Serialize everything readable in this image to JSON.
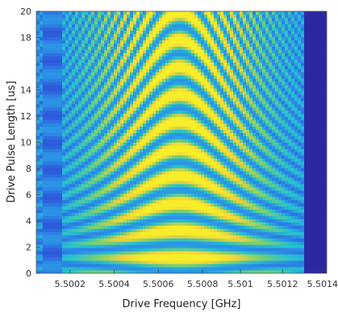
{
  "chart_data": {
    "type": "heatmap",
    "title": "",
    "xlabel": "Drive Frequency [GHz]",
    "ylabel": "Drive Pulse Length [us]",
    "xlim": [
      5.50005,
      5.50143
    ],
    "ylim": [
      0,
      20
    ],
    "x_ticks": [
      {
        "value": 5.50021,
        "label": "5.5002"
      },
      {
        "value": 5.50042,
        "label": "5.5004"
      },
      {
        "value": 5.50063,
        "label": "5.5006"
      },
      {
        "value": 5.50084,
        "label": "5.5008"
      },
      {
        "value": 5.50102,
        "label": "5.501"
      },
      {
        "value": 5.50122,
        "label": "5.5012"
      },
      {
        "value": 5.50141,
        "label": "5.5014"
      }
    ],
    "y_ticks": [
      {
        "value": 0,
        "label": "0"
      },
      {
        "value": 2,
        "label": "2"
      },
      {
        "value": 4,
        "label": "4"
      },
      {
        "value": 6,
        "label": "6"
      },
      {
        "value": 8,
        "label": "8"
      },
      {
        "value": 10,
        "label": "10"
      },
      {
        "value": 12,
        "label": "12"
      },
      {
        "value": 14,
        "label": "14"
      },
      {
        "value": 18,
        "label": "18"
      },
      {
        "value": 20,
        "label": "20"
      }
    ],
    "resonance_frequency": 5.50073,
    "band_centers_us": [
      1.2,
      3.3,
      5.4,
      7.4,
      9.5,
      11.7,
      13.8,
      15.9,
      18.0,
      20.0
    ],
    "fringe_pattern": "Chevron-shaped Rabi oscillation fringes centered on the resonance; the brightest (yellow) bands are near the resonance frequency and fade to blue away from it",
    "colormap": [
      "#2a1a8a",
      "#2e4bd6",
      "#2d8de8",
      "#22c1d1",
      "#7fd06a",
      "#f2d13a",
      "#f7ee2a"
    ],
    "grid": false,
    "legend": "none"
  }
}
